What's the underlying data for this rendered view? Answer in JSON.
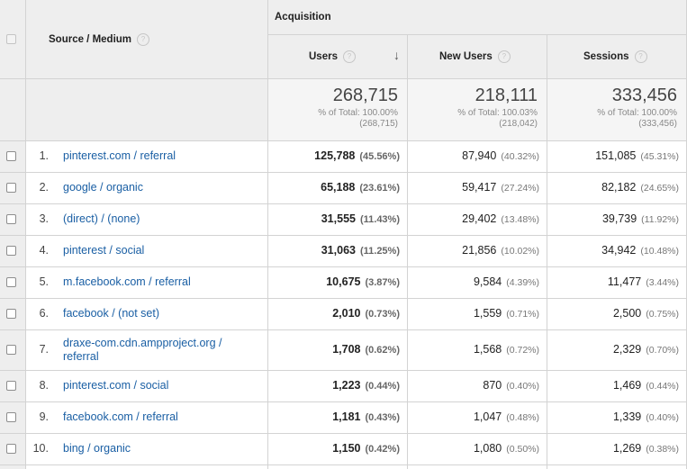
{
  "header": {
    "dimension_label": "Source / Medium",
    "group_label": "Acquisition",
    "help_glyph": "?",
    "sort_glyph": "↓",
    "columns": [
      {
        "label": "Users"
      },
      {
        "label": "New Users"
      },
      {
        "label": "Sessions"
      }
    ]
  },
  "totals": [
    {
      "value": "268,715",
      "pct": "% of Total: 100.00%",
      "sub": "(268,715)"
    },
    {
      "value": "218,111",
      "pct": "% of Total: 100.03%",
      "sub": "(218,042)"
    },
    {
      "value": "333,456",
      "pct": "% of Total: 100.00%",
      "sub": "(333,456)"
    }
  ],
  "rows": [
    {
      "num": "1.",
      "source": "pinterest.com / referral",
      "users": "125,788",
      "users_pct": "(45.56%)",
      "new_users": "87,940",
      "new_users_pct": "(40.32%)",
      "sessions": "151,085",
      "sessions_pct": "(45.31%)"
    },
    {
      "num": "2.",
      "source": "google / organic",
      "users": "65,188",
      "users_pct": "(23.61%)",
      "new_users": "59,417",
      "new_users_pct": "(27.24%)",
      "sessions": "82,182",
      "sessions_pct": "(24.65%)"
    },
    {
      "num": "3.",
      "source": "(direct) / (none)",
      "users": "31,555",
      "users_pct": "(11.43%)",
      "new_users": "29,402",
      "new_users_pct": "(13.48%)",
      "sessions": "39,739",
      "sessions_pct": "(11.92%)"
    },
    {
      "num": "4.",
      "source": "pinterest / social",
      "users": "31,063",
      "users_pct": "(11.25%)",
      "new_users": "21,856",
      "new_users_pct": "(10.02%)",
      "sessions": "34,942",
      "sessions_pct": "(10.48%)"
    },
    {
      "num": "5.",
      "source": "m.facebook.com / referral",
      "users": "10,675",
      "users_pct": "(3.87%)",
      "new_users": "9,584",
      "new_users_pct": "(4.39%)",
      "sessions": "11,477",
      "sessions_pct": "(3.44%)"
    },
    {
      "num": "6.",
      "source": "facebook / (not set)",
      "users": "2,010",
      "users_pct": "(0.73%)",
      "new_users": "1,559",
      "new_users_pct": "(0.71%)",
      "sessions": "2,500",
      "sessions_pct": "(0.75%)"
    },
    {
      "num": "7.",
      "source": "draxe-com.cdn.ampproject.org / referral",
      "users": "1,708",
      "users_pct": "(0.62%)",
      "new_users": "1,568",
      "new_users_pct": "(0.72%)",
      "sessions": "2,329",
      "sessions_pct": "(0.70%)"
    },
    {
      "num": "8.",
      "source": "pinterest.com / social",
      "users": "1,223",
      "users_pct": "(0.44%)",
      "new_users": "870",
      "new_users_pct": "(0.40%)",
      "sessions": "1,469",
      "sessions_pct": "(0.44%)"
    },
    {
      "num": "9.",
      "source": "facebook.com / referral",
      "users": "1,181",
      "users_pct": "(0.43%)",
      "new_users": "1,047",
      "new_users_pct": "(0.48%)",
      "sessions": "1,339",
      "sessions_pct": "(0.40%)"
    },
    {
      "num": "10.",
      "source": "bing / organic",
      "users": "1,150",
      "users_pct": "(0.42%)",
      "new_users": "1,080",
      "new_users_pct": "(0.50%)",
      "sessions": "1,269",
      "sessions_pct": "(0.38%)"
    }
  ]
}
